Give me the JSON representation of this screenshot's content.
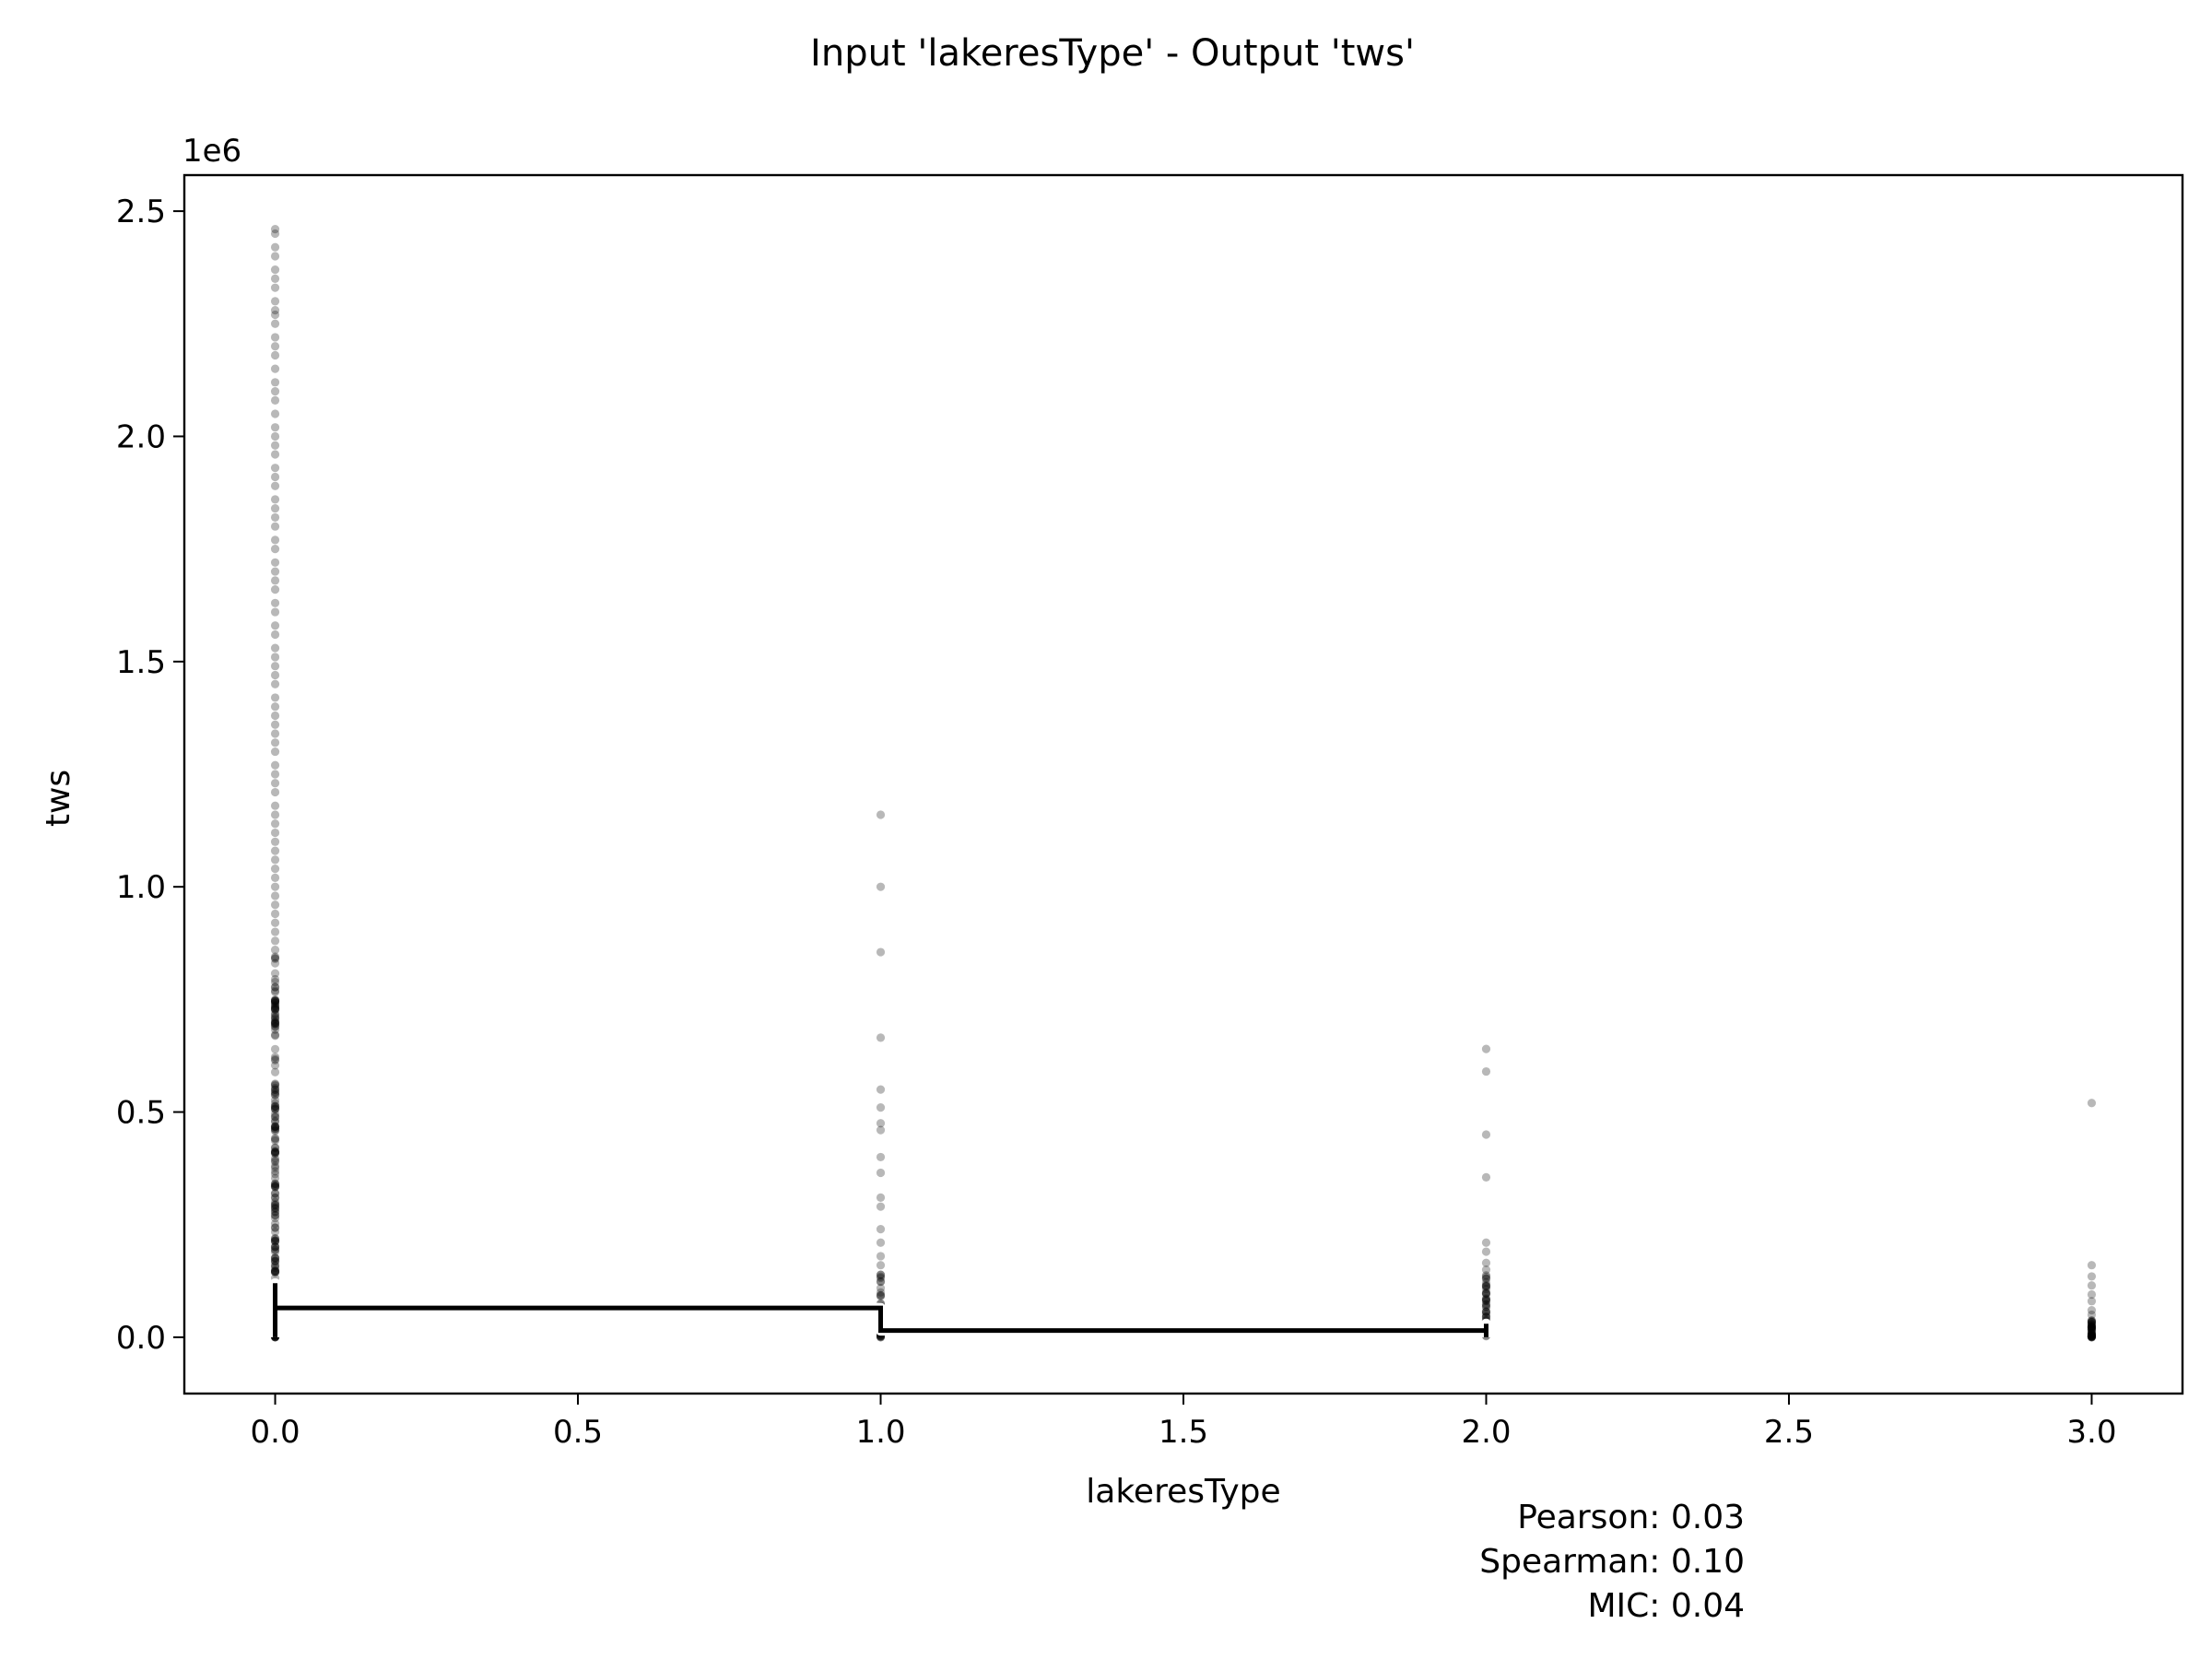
{
  "chart_data": {
    "type": "scatter",
    "title": "Input 'lakeresType' - Output 'tws'",
    "xlabel": "lakeresType",
    "ylabel": "tws",
    "y_offset_label": "1e6",
    "xlim": [
      -0.15,
      3.15
    ],
    "ylim": [
      -0.125,
      2.58
    ],
    "x_ticks": [
      0.0,
      0.5,
      1.0,
      1.5,
      2.0,
      2.5,
      3.0
    ],
    "x_tick_labels": [
      "0.0",
      "0.5",
      "1.0",
      "1.5",
      "2.0",
      "2.5",
      "3.0"
    ],
    "y_ticks": [
      0.0,
      0.5,
      1.0,
      1.5,
      2.0,
      2.5
    ],
    "y_tick_labels": [
      "0.0",
      "0.5",
      "1.0",
      "1.5",
      "2.0",
      "2.5"
    ],
    "y_unit_scale": 1000000,
    "point_color": "#000000",
    "point_opacity": 0.28,
    "series": [
      {
        "x_value": 0,
        "dense_range": [
          0.0,
          0.85
        ],
        "values": [
          2.46,
          2.45,
          2.42,
          2.4,
          2.37,
          2.35,
          2.33,
          2.3,
          2.28,
          2.27,
          2.25,
          2.22,
          2.2,
          2.18,
          2.15,
          2.12,
          2.1,
          2.08,
          2.05,
          2.02,
          2.0,
          1.98,
          1.96,
          1.93,
          1.91,
          1.89,
          1.86,
          1.84,
          1.82,
          1.8,
          1.77,
          1.75,
          1.72,
          1.7,
          1.68,
          1.66,
          1.63,
          1.61,
          1.58,
          1.56,
          1.53,
          1.51,
          1.49,
          1.47,
          1.45,
          1.42,
          1.4,
          1.38,
          1.36,
          1.34,
          1.32,
          1.3,
          1.27,
          1.25,
          1.23,
          1.21,
          1.18,
          1.16,
          1.14,
          1.12,
          1.1,
          1.08,
          1.06,
          1.04,
          1.02,
          1.0,
          0.98,
          0.96,
          0.94,
          0.92,
          0.9,
          0.88,
          0.86
        ]
      },
      {
        "x_value": 1,
        "dense_range": [
          0.0,
          0.14
        ],
        "values": [
          1.16,
          1.0,
          0.855,
          0.665,
          0.55,
          0.51,
          0.475,
          0.46,
          0.4,
          0.365,
          0.31,
          0.29,
          0.24,
          0.21,
          0.18,
          0.16
        ]
      },
      {
        "x_value": 2,
        "dense_range": [
          0.0,
          0.14
        ],
        "values": [
          0.64,
          0.59,
          0.45,
          0.355,
          0.21,
          0.19,
          0.165,
          0.15
        ]
      },
      {
        "x_value": 3,
        "dense_range": [
          0.0,
          0.04
        ],
        "values": [
          0.52,
          0.16,
          0.135,
          0.115,
          0.095,
          0.08,
          0.06,
          0.05
        ]
      }
    ],
    "step_line": {
      "points": [
        [
          0,
          0.0
        ],
        [
          0,
          0.12
        ],
        [
          0,
          0.065
        ],
        [
          1,
          0.065
        ],
        [
          1,
          0.015
        ],
        [
          2,
          0.015
        ],
        [
          2,
          0.03
        ],
        [
          2,
          0.0
        ]
      ],
      "color": "#000000",
      "outline_color": "#ffffff"
    }
  },
  "stats": {
    "pearson": "Pearson: 0.03",
    "spearman": "Spearman: 0.10",
    "mic": "MIC: 0.04"
  }
}
